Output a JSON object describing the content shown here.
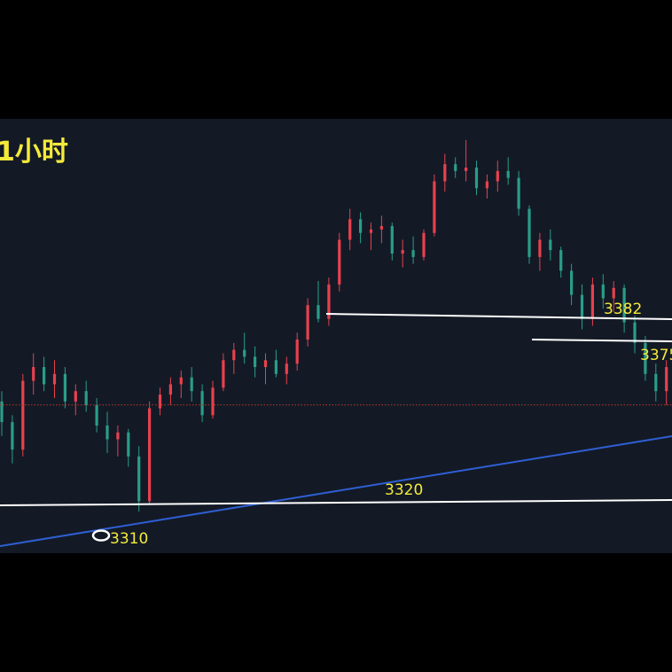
{
  "chart_data": {
    "type": "candlestick",
    "title": "1小时",
    "ylim": [
      3302,
      3418
    ],
    "colors": {
      "up": "#e8414d",
      "down": "#2a9d88",
      "horizontal_line": "#ffffff",
      "trend_line": "#2f5fd4",
      "reference_line": "#c0392b",
      "label": "#f5ea3a",
      "background": "#131a26"
    },
    "reference_price": 3341,
    "candles": [
      [
        3342,
        3345,
        3332,
        3336
      ],
      [
        3336,
        3338,
        3324,
        3328
      ],
      [
        3328,
        3350,
        3326,
        3348
      ],
      [
        3348,
        3356,
        3344,
        3352
      ],
      [
        3352,
        3355,
        3345,
        3347
      ],
      [
        3347,
        3354,
        3343,
        3350
      ],
      [
        3350,
        3352,
        3340,
        3342
      ],
      [
        3342,
        3347,
        3338,
        3345
      ],
      [
        3345,
        3348,
        3339,
        3341
      ],
      [
        3341,
        3343,
        3333,
        3335
      ],
      [
        3335,
        3339,
        3327,
        3331
      ],
      [
        3331,
        3335,
        3326,
        3333
      ],
      [
        3333,
        3334,
        3323,
        3326
      ],
      [
        3326,
        3329,
        3310,
        3313
      ],
      [
        3313,
        3342,
        3312,
        3340
      ],
      [
        3340,
        3346,
        3338,
        3344
      ],
      [
        3344,
        3349,
        3341,
        3347
      ],
      [
        3347,
        3351,
        3343,
        3349
      ],
      [
        3349,
        3352,
        3342,
        3345
      ],
      [
        3345,
        3347,
        3336,
        3338
      ],
      [
        3338,
        3348,
        3337,
        3346
      ],
      [
        3346,
        3356,
        3345,
        3354
      ],
      [
        3354,
        3359,
        3350,
        3357
      ],
      [
        3357,
        3362,
        3353,
        3355
      ],
      [
        3355,
        3358,
        3349,
        3352
      ],
      [
        3352,
        3356,
        3347,
        3354
      ],
      [
        3354,
        3357,
        3349,
        3350
      ],
      [
        3350,
        3355,
        3347,
        3353
      ],
      [
        3353,
        3362,
        3351,
        3360
      ],
      [
        3360,
        3372,
        3358,
        3370
      ],
      [
        3370,
        3377,
        3365,
        3366
      ],
      [
        3366,
        3378,
        3364,
        3376
      ],
      [
        3376,
        3391,
        3374,
        3389
      ],
      [
        3389,
        3398,
        3386,
        3395
      ],
      [
        3395,
        3397,
        3388,
        3391
      ],
      [
        3391,
        3394,
        3386,
        3392
      ],
      [
        3392,
        3396,
        3388,
        3393
      ],
      [
        3393,
        3394,
        3383,
        3385
      ],
      [
        3385,
        3389,
        3381,
        3386
      ],
      [
        3386,
        3390,
        3382,
        3384
      ],
      [
        3384,
        3392,
        3383,
        3391
      ],
      [
        3391,
        3408,
        3390,
        3406
      ],
      [
        3406,
        3414,
        3403,
        3411
      ],
      [
        3411,
        3413,
        3407,
        3409
      ],
      [
        3409,
        3418,
        3406,
        3410
      ],
      [
        3410,
        3412,
        3402,
        3404
      ],
      [
        3404,
        3408,
        3401,
        3406
      ],
      [
        3406,
        3412,
        3403,
        3409
      ],
      [
        3409,
        3413,
        3405,
        3407
      ],
      [
        3407,
        3409,
        3396,
        3398
      ],
      [
        3398,
        3399,
        3382,
        3384
      ],
      [
        3384,
        3391,
        3380,
        3389
      ],
      [
        3389,
        3392,
        3383,
        3386
      ],
      [
        3386,
        3387,
        3378,
        3380
      ],
      [
        3380,
        3382,
        3370,
        3373
      ],
      [
        3373,
        3376,
        3363,
        3366
      ],
      [
        3366,
        3378,
        3364,
        3376
      ],
      [
        3376,
        3379,
        3369,
        3372
      ],
      [
        3372,
        3377,
        3368,
        3375
      ],
      [
        3375,
        3376,
        3362,
        3365
      ],
      [
        3365,
        3367,
        3356,
        3359
      ],
      [
        3359,
        3361,
        3348,
        3350
      ],
      [
        3350,
        3353,
        3342,
        3345
      ],
      [
        3345,
        3354,
        3341,
        3352
      ]
    ],
    "horizontal_levels": [
      {
        "value": 3382,
        "label": "3382"
      },
      {
        "value": 3375,
        "label": "3375"
      },
      {
        "value": 3320,
        "label": "3320"
      }
    ],
    "low_marker": {
      "value": 3310,
      "label": "3310"
    }
  }
}
